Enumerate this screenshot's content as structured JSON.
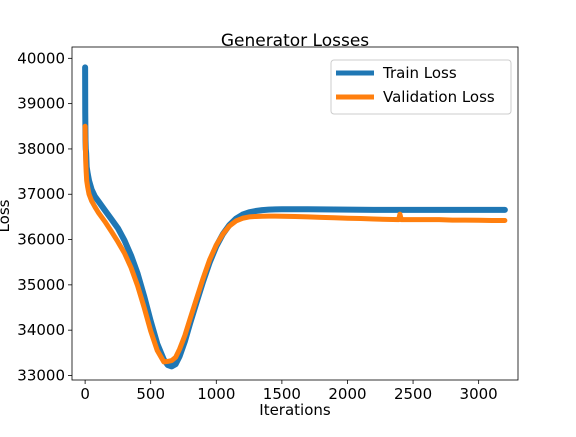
{
  "chart_data": {
    "type": "line",
    "title": "Generator Losses",
    "xlabel": "Iterations",
    "ylabel": "Loss",
    "xlim": [
      -100,
      3300
    ],
    "ylim": [
      32900,
      40250
    ],
    "xticks": [
      0,
      500,
      1000,
      1500,
      2000,
      2500,
      3000
    ],
    "yticks": [
      33000,
      34000,
      35000,
      36000,
      37000,
      38000,
      39000,
      40000
    ],
    "grid": false,
    "legend_position": "top-right",
    "series": [
      {
        "name": "Train Loss",
        "color": "#1f77b4",
        "x": [
          0,
          1,
          3,
          5,
          8,
          12,
          20,
          30,
          50,
          75,
          100,
          150,
          200,
          250,
          300,
          350,
          400,
          450,
          500,
          550,
          600,
          630,
          660,
          690,
          720,
          760,
          800,
          850,
          900,
          950,
          1000,
          1050,
          1100,
          1150,
          1200,
          1250,
          1300,
          1350,
          1400,
          1450,
          1500,
          1600,
          1700,
          1800,
          1900,
          2000,
          2100,
          2200,
          2300,
          2400,
          2500,
          2600,
          2700,
          2800,
          2900,
          3000,
          3100,
          3200
        ],
        "y": [
          39800,
          38800,
          38200,
          38000,
          37900,
          37600,
          37450,
          37300,
          37100,
          36950,
          36850,
          36650,
          36450,
          36250,
          35980,
          35650,
          35250,
          34750,
          34200,
          33700,
          33350,
          33230,
          33200,
          33250,
          33420,
          33750,
          34150,
          34620,
          35080,
          35500,
          35850,
          36120,
          36320,
          36460,
          36550,
          36600,
          36630,
          36650,
          36660,
          36665,
          36670,
          36670,
          36668,
          36665,
          36662,
          36660,
          36658,
          36656,
          36655,
          36655,
          36655,
          36655,
          36655,
          36655,
          36655,
          36655,
          36655,
          36655
        ]
      },
      {
        "name": "Validation Loss",
        "color": "#ff7f0e",
        "x": [
          0,
          1,
          3,
          5,
          8,
          12,
          20,
          30,
          50,
          75,
          100,
          150,
          200,
          250,
          300,
          350,
          400,
          450,
          500,
          550,
          600,
          630,
          660,
          690,
          720,
          760,
          800,
          850,
          900,
          950,
          1000,
          1050,
          1100,
          1150,
          1200,
          1250,
          1300,
          1350,
          1400,
          1450,
          1500,
          1600,
          1700,
          1800,
          1900,
          2000,
          2100,
          2200,
          2300,
          2390,
          2400,
          2410,
          2500,
          2600,
          2700,
          2800,
          2900,
          3000,
          3100,
          3200
        ],
        "y": [
          38500,
          38300,
          37950,
          37700,
          37500,
          37300,
          37150,
          37000,
          36850,
          36720,
          36600,
          36400,
          36180,
          35950,
          35700,
          35380,
          34980,
          34500,
          33980,
          33550,
          33300,
          33310,
          33330,
          33400,
          33580,
          33880,
          34250,
          34700,
          35150,
          35560,
          35880,
          36120,
          36300,
          36410,
          36470,
          36500,
          36510,
          36515,
          36518,
          36518,
          36515,
          36510,
          36500,
          36490,
          36480,
          36470,
          36465,
          36455,
          36445,
          36440,
          36560,
          36440,
          36440,
          36440,
          36440,
          36430,
          36430,
          36425,
          36420,
          36420
        ]
      }
    ]
  }
}
